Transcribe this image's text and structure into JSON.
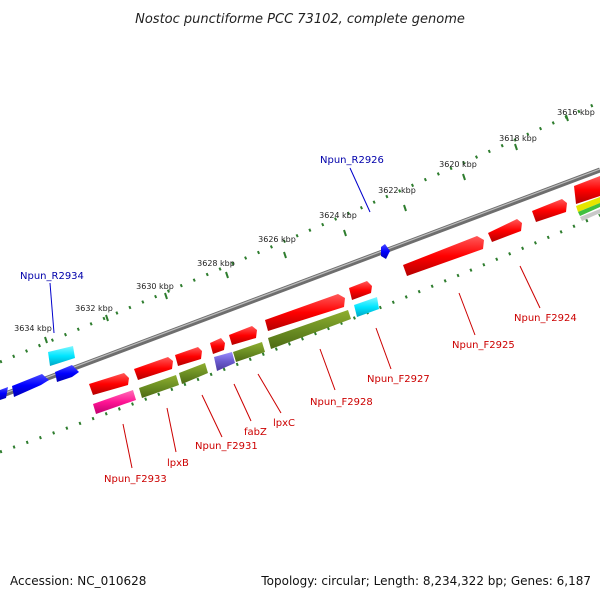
{
  "title": "Nostoc punctiforme PCC 73102, complete genome",
  "footer": {
    "accession": "Accession: NC_010628",
    "topology": "Topology: circular; Length: 8,234,322 bp; Genes: 6,187"
  },
  "ticks": [
    "3616 kbp",
    "3618 kbp",
    "3620 kbp",
    "3622 kbp",
    "3624 kbp",
    "3626 kbp",
    "3628 kbp",
    "3630 kbp",
    "3632 kbp",
    "3634 kbp"
  ],
  "colors": {
    "backbone": "#7a7a7a",
    "forward_gene": "#ff0000",
    "reverse_gene": "#0000ff",
    "label_forward": "#cc0000",
    "label_reverse": "#0000aa",
    "tick": "#2e7d2e"
  },
  "gene_labels": [
    {
      "name": "Npun_R2926",
      "strand": "reverse"
    },
    {
      "name": "Npun_R2934",
      "strand": "reverse"
    },
    {
      "name": "Npun_F2924",
      "strand": "forward"
    },
    {
      "name": "Npun_F2925",
      "strand": "forward"
    },
    {
      "name": "Npun_F2927",
      "strand": "forward"
    },
    {
      "name": "Npun_F2928",
      "strand": "forward"
    },
    {
      "name": "lpxC",
      "strand": "forward"
    },
    {
      "name": "fabZ",
      "strand": "forward"
    },
    {
      "name": "Npun_F2931",
      "strand": "forward"
    },
    {
      "name": "lpxB",
      "strand": "forward"
    },
    {
      "name": "Npun_F2933",
      "strand": "forward"
    }
  ]
}
